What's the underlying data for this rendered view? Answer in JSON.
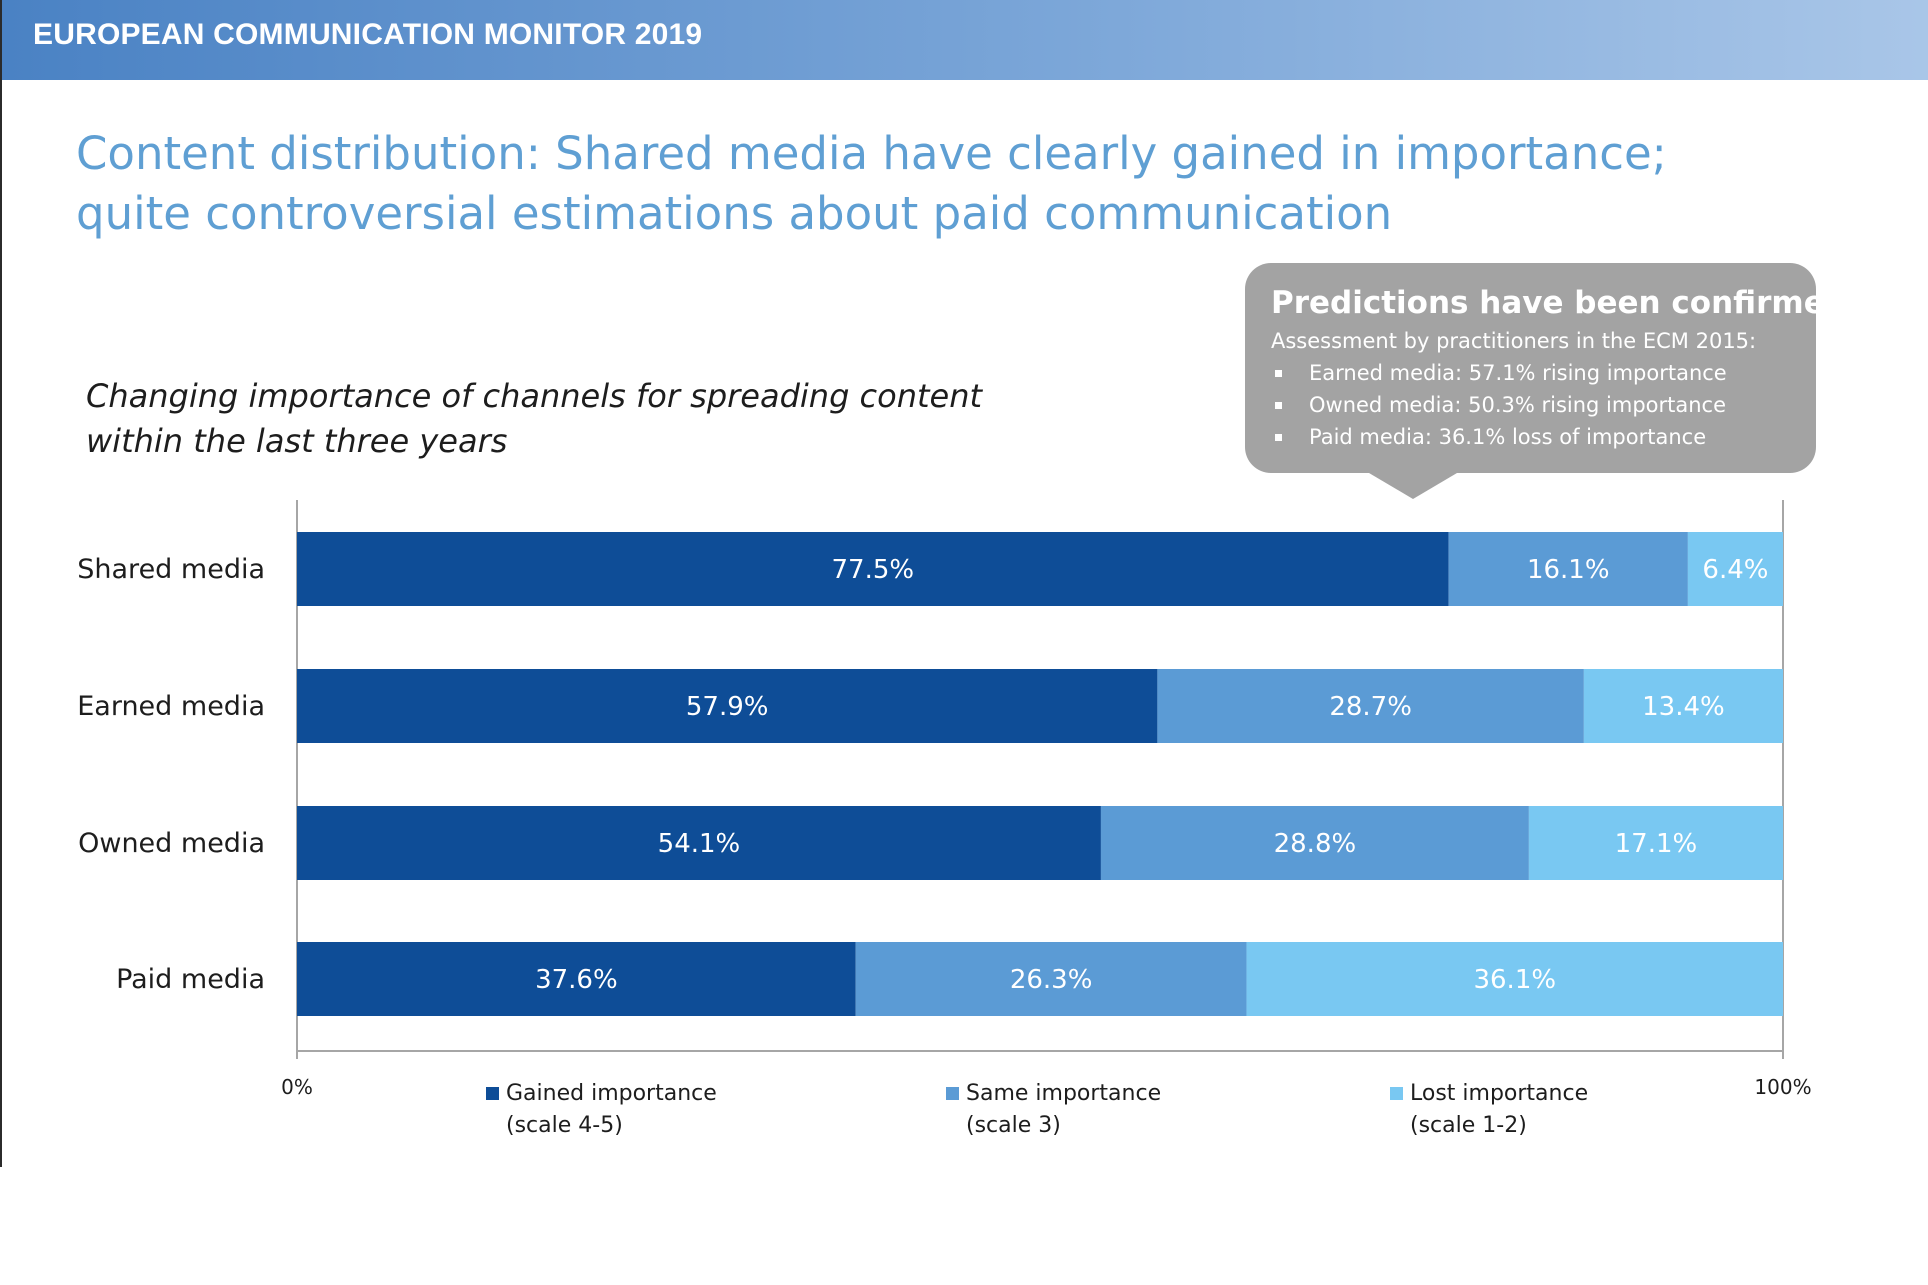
{
  "header": {
    "title": "EUROPEAN COMMUNICATION MONITOR 2019"
  },
  "headline": {
    "line1": "Content distribution: Shared media have clearly gained in importance;",
    "line2": "quite controversial estimations about paid communication"
  },
  "subtitle": {
    "line1": "Changing importance of channels for spreading content",
    "line2": "within the last three years"
  },
  "callout": {
    "title": "Predictions have been confirmed",
    "intro": "Assessment by practitioners in the ECM 2015:",
    "bullets": [
      "Earned media: 57.1% rising importance",
      "Owned media: 50.3% rising importance",
      "Paid media: 36.1% loss of importance"
    ]
  },
  "legend": [
    {
      "line1": "Gained importance",
      "line2": "(scale 4-5)"
    },
    {
      "line1": "Same importance",
      "line2": "(scale 3)"
    },
    {
      "line1": "Lost importance",
      "line2": "(scale 1-2)"
    }
  ],
  "colors": {
    "gained": "#0e4d97",
    "same": "#5b9bd5",
    "lost": "#79c8f2",
    "axis": "#a6a6a6",
    "header_start": "#4a82c4",
    "headline": "#5f9fd3",
    "callout": "#a3a3a3"
  },
  "chart_data": {
    "type": "bar",
    "orientation": "horizontal",
    "stacked": true,
    "categories": [
      "Shared media",
      "Earned media",
      "Owned media",
      "Paid media"
    ],
    "series": [
      {
        "name": "Gained importance (scale 4-5)",
        "values": [
          77.5,
          57.9,
          54.1,
          37.6
        ],
        "labels": [
          "77.5%",
          "57.9%",
          "54.1%",
          "37.6%"
        ]
      },
      {
        "name": "Same importance (scale 3)",
        "values": [
          16.1,
          28.7,
          28.8,
          26.3
        ],
        "labels": [
          "16.1%",
          "28.7%",
          "28.8%",
          "26.3%"
        ]
      },
      {
        "name": "Lost importance (scale 1-2)",
        "values": [
          6.4,
          13.4,
          17.1,
          36.1
        ],
        "labels": [
          "6.4%",
          "13.4%",
          "17.1%",
          "36.1%"
        ]
      }
    ],
    "xlim": [
      0,
      100
    ],
    "x_ticks": [
      "0%",
      "100%"
    ],
    "grid": false,
    "legend_position": "bottom"
  }
}
